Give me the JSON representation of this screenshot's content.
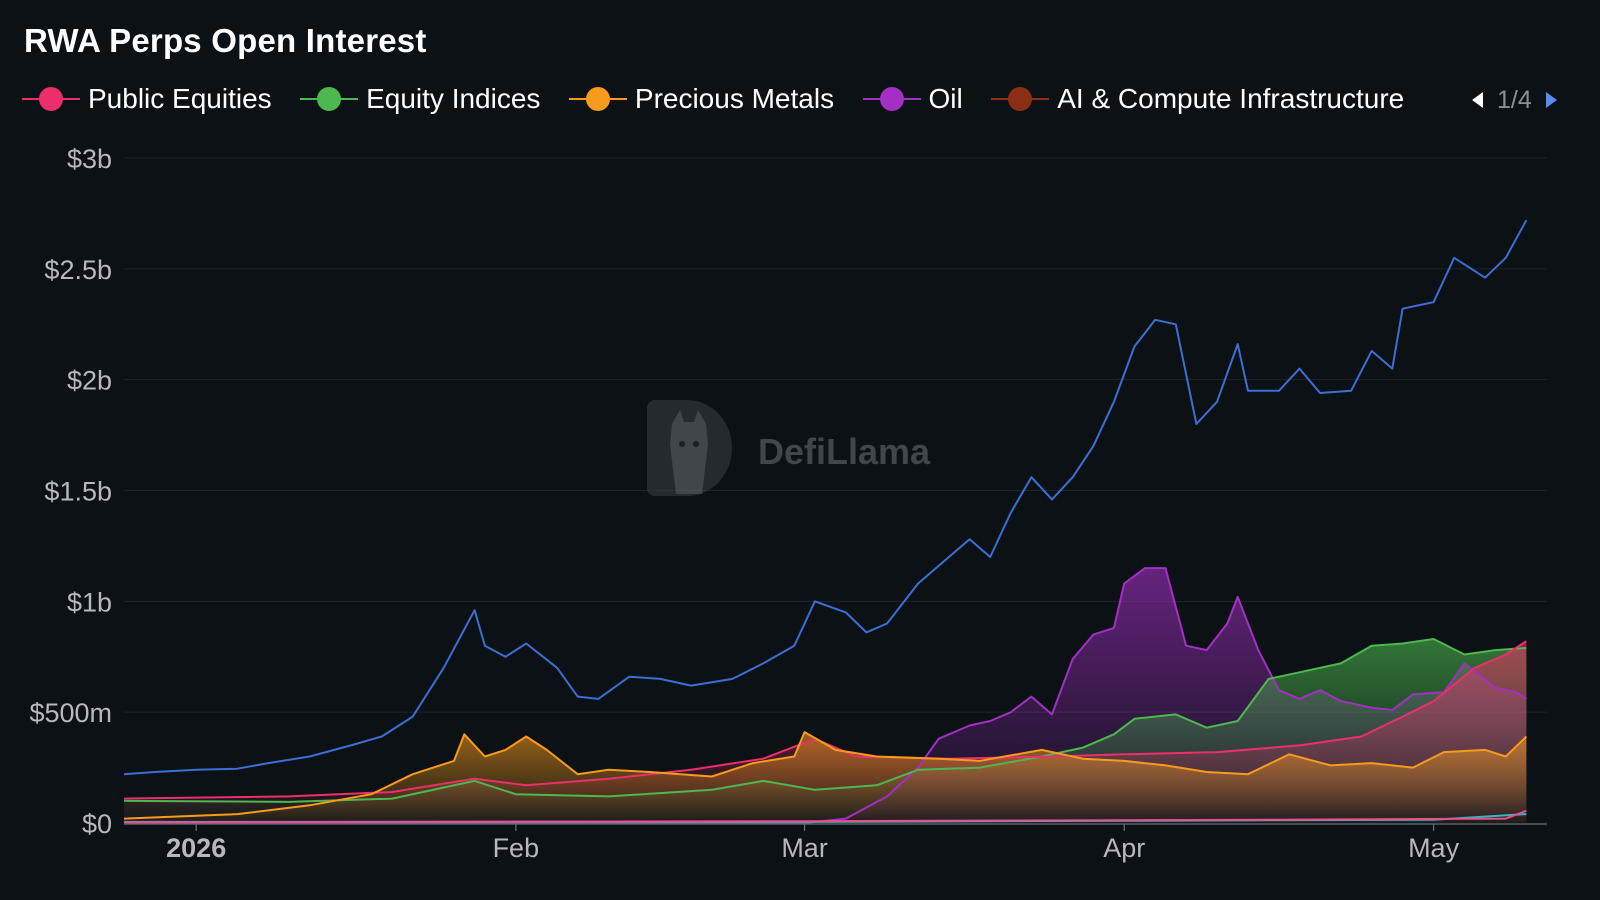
{
  "title": "RWA Perps Open Interest",
  "legend": {
    "items": [
      {
        "label": "Public Equities",
        "color": "#ec2f6b"
      },
      {
        "label": "Equity Indices",
        "color": "#4cb84d"
      },
      {
        "label": "Precious Metals",
        "color": "#f89a1c"
      },
      {
        "label": "Oil",
        "color": "#a32fc4"
      },
      {
        "label": "AI & Compute Infrastructure",
        "color": "#8a2f14"
      }
    ],
    "page": "1/4"
  },
  "watermark": "DefiLlama",
  "chart_data": {
    "type": "line",
    "ylim": [
      0,
      3000000000
    ],
    "y_ticks": [
      {
        "value": 0,
        "label": "$0"
      },
      {
        "value": 500000000,
        "label": "$500m"
      },
      {
        "value": 1000000000,
        "label": "$1b"
      },
      {
        "value": 1500000000,
        "label": "$1.5b"
      },
      {
        "value": 2000000000,
        "label": "$2b"
      },
      {
        "value": 2500000000,
        "label": "$2.5b"
      },
      {
        "value": 3000000000,
        "label": "$3b"
      }
    ],
    "xlim": [
      "2025-12-25",
      "2026-05-12"
    ],
    "x_ticks": [
      {
        "date": "2026-01-01",
        "label": "2026",
        "bold": true
      },
      {
        "date": "2026-02-01",
        "label": "Feb",
        "bold": false
      },
      {
        "date": "2026-03-01",
        "label": "Mar",
        "bold": false
      },
      {
        "date": "2026-04-01",
        "label": "Apr",
        "bold": false
      },
      {
        "date": "2026-05-01",
        "label": "May",
        "bold": false
      }
    ],
    "grid": "horizontal",
    "series": [
      {
        "color": "#3b6fd6",
        "fill": false,
        "points": [
          [
            "2025-12-25",
            220000000
          ],
          [
            "2025-12-28",
            230000000
          ],
          [
            "2026-01-01",
            240000000
          ],
          [
            "2026-01-05",
            245000000
          ],
          [
            "2026-01-08",
            270000000
          ],
          [
            "2026-01-12",
            300000000
          ],
          [
            "2026-01-16",
            350000000
          ],
          [
            "2026-01-19",
            390000000
          ],
          [
            "2026-01-22",
            480000000
          ],
          [
            "2026-01-25",
            700000000
          ],
          [
            "2026-01-28",
            960000000
          ],
          [
            "2026-01-29",
            800000000
          ],
          [
            "2026-01-31",
            750000000
          ],
          [
            "2026-02-02",
            810000000
          ],
          [
            "2026-02-05",
            700000000
          ],
          [
            "2026-02-07",
            570000000
          ],
          [
            "2026-02-09",
            560000000
          ],
          [
            "2026-02-12",
            660000000
          ],
          [
            "2026-02-15",
            650000000
          ],
          [
            "2026-02-18",
            620000000
          ],
          [
            "2026-02-22",
            650000000
          ],
          [
            "2026-02-25",
            720000000
          ],
          [
            "2026-02-28",
            800000000
          ],
          [
            "2026-03-02",
            1000000000
          ],
          [
            "2026-03-05",
            950000000
          ],
          [
            "2026-03-07",
            860000000
          ],
          [
            "2026-03-09",
            900000000
          ],
          [
            "2026-03-12",
            1080000000
          ],
          [
            "2026-03-15",
            1200000000
          ],
          [
            "2026-03-17",
            1280000000
          ],
          [
            "2026-03-19",
            1200000000
          ],
          [
            "2026-03-21",
            1400000000
          ],
          [
            "2026-03-23",
            1560000000
          ],
          [
            "2026-03-25",
            1460000000
          ],
          [
            "2026-03-27",
            1560000000
          ],
          [
            "2026-03-29",
            1700000000
          ],
          [
            "2026-03-31",
            1900000000
          ],
          [
            "2026-04-02",
            2150000000
          ],
          [
            "2026-04-04",
            2270000000
          ],
          [
            "2026-04-06",
            2250000000
          ],
          [
            "2026-04-08",
            1800000000
          ],
          [
            "2026-04-10",
            1900000000
          ],
          [
            "2026-04-12",
            2160000000
          ],
          [
            "2026-04-13",
            1950000000
          ],
          [
            "2026-04-16",
            1950000000
          ],
          [
            "2026-04-18",
            2050000000
          ],
          [
            "2026-04-20",
            1940000000
          ],
          [
            "2026-04-23",
            1950000000
          ],
          [
            "2026-04-25",
            2130000000
          ],
          [
            "2026-04-27",
            2050000000
          ],
          [
            "2026-04-28",
            2320000000
          ],
          [
            "2026-05-01",
            2350000000
          ],
          [
            "2026-05-03",
            2550000000
          ],
          [
            "2026-05-06",
            2460000000
          ],
          [
            "2026-05-08",
            2550000000
          ],
          [
            "2026-05-10",
            2720000000
          ]
        ]
      },
      {
        "color": "#a32fc4",
        "fill": true,
        "points": [
          [
            "2025-12-25",
            0
          ],
          [
            "2026-03-01",
            0
          ],
          [
            "2026-03-05",
            20000000
          ],
          [
            "2026-03-09",
            120000000
          ],
          [
            "2026-03-12",
            250000000
          ],
          [
            "2026-03-14",
            380000000
          ],
          [
            "2026-03-17",
            440000000
          ],
          [
            "2026-03-19",
            460000000
          ],
          [
            "2026-03-21",
            500000000
          ],
          [
            "2026-03-23",
            570000000
          ],
          [
            "2026-03-25",
            490000000
          ],
          [
            "2026-03-27",
            740000000
          ],
          [
            "2026-03-29",
            850000000
          ],
          [
            "2026-03-31",
            880000000
          ],
          [
            "2026-04-01",
            1080000000
          ],
          [
            "2026-04-03",
            1150000000
          ],
          [
            "2026-04-05",
            1150000000
          ],
          [
            "2026-04-07",
            800000000
          ],
          [
            "2026-04-09",
            780000000
          ],
          [
            "2026-04-11",
            900000000
          ],
          [
            "2026-04-12",
            1020000000
          ],
          [
            "2026-04-14",
            780000000
          ],
          [
            "2026-04-16",
            600000000
          ],
          [
            "2026-04-18",
            560000000
          ],
          [
            "2026-04-20",
            600000000
          ],
          [
            "2026-04-22",
            550000000
          ],
          [
            "2026-04-25",
            520000000
          ],
          [
            "2026-04-27",
            510000000
          ],
          [
            "2026-04-29",
            580000000
          ],
          [
            "2026-05-02",
            590000000
          ],
          [
            "2026-05-04",
            720000000
          ],
          [
            "2026-05-07",
            610000000
          ],
          [
            "2026-05-09",
            590000000
          ],
          [
            "2026-05-10",
            560000000
          ]
        ]
      },
      {
        "color": "#4cb84d",
        "fill": true,
        "points": [
          [
            "2025-12-25",
            100000000
          ],
          [
            "2026-01-10",
            95000000
          ],
          [
            "2026-01-20",
            110000000
          ],
          [
            "2026-01-28",
            190000000
          ],
          [
            "2026-02-01",
            130000000
          ],
          [
            "2026-02-10",
            120000000
          ],
          [
            "2026-02-20",
            150000000
          ],
          [
            "2026-02-25",
            190000000
          ],
          [
            "2026-03-02",
            150000000
          ],
          [
            "2026-03-08",
            170000000
          ],
          [
            "2026-03-12",
            240000000
          ],
          [
            "2026-03-18",
            250000000
          ],
          [
            "2026-03-24",
            300000000
          ],
          [
            "2026-03-28",
            340000000
          ],
          [
            "2026-03-31",
            400000000
          ],
          [
            "2026-04-02",
            470000000
          ],
          [
            "2026-04-06",
            490000000
          ],
          [
            "2026-04-09",
            430000000
          ],
          [
            "2026-04-12",
            460000000
          ],
          [
            "2026-04-15",
            650000000
          ],
          [
            "2026-04-18",
            680000000
          ],
          [
            "2026-04-22",
            720000000
          ],
          [
            "2026-04-25",
            800000000
          ],
          [
            "2026-04-28",
            810000000
          ],
          [
            "2026-05-01",
            830000000
          ],
          [
            "2026-05-04",
            760000000
          ],
          [
            "2026-05-07",
            780000000
          ],
          [
            "2026-05-10",
            790000000
          ]
        ]
      },
      {
        "color": "#ec2f6b",
        "fill": true,
        "points": [
          [
            "2025-12-25",
            110000000
          ],
          [
            "2026-01-10",
            120000000
          ],
          [
            "2026-01-20",
            140000000
          ],
          [
            "2026-01-28",
            200000000
          ],
          [
            "2026-02-02",
            170000000
          ],
          [
            "2026-02-10",
            200000000
          ],
          [
            "2026-02-18",
            240000000
          ],
          [
            "2026-02-25",
            290000000
          ],
          [
            "2026-03-02",
            380000000
          ],
          [
            "2026-03-06",
            300000000
          ],
          [
            "2026-03-15",
            290000000
          ],
          [
            "2026-03-25",
            300000000
          ],
          [
            "2026-04-01",
            310000000
          ],
          [
            "2026-04-10",
            320000000
          ],
          [
            "2026-04-18",
            350000000
          ],
          [
            "2026-04-24",
            390000000
          ],
          [
            "2026-04-28",
            480000000
          ],
          [
            "2026-05-01",
            550000000
          ],
          [
            "2026-05-05",
            700000000
          ],
          [
            "2026-05-08",
            760000000
          ],
          [
            "2026-05-10",
            820000000
          ]
        ]
      },
      {
        "color": "#f89a1c",
        "fill": true,
        "points": [
          [
            "2025-12-25",
            20000000
          ],
          [
            "2026-01-05",
            40000000
          ],
          [
            "2026-01-12",
            80000000
          ],
          [
            "2026-01-18",
            130000000
          ],
          [
            "2026-01-22",
            220000000
          ],
          [
            "2026-01-26",
            280000000
          ],
          [
            "2026-01-27",
            400000000
          ],
          [
            "2026-01-29",
            300000000
          ],
          [
            "2026-01-31",
            330000000
          ],
          [
            "2026-02-02",
            390000000
          ],
          [
            "2026-02-04",
            330000000
          ],
          [
            "2026-02-07",
            220000000
          ],
          [
            "2026-02-10",
            240000000
          ],
          [
            "2026-02-14",
            230000000
          ],
          [
            "2026-02-20",
            210000000
          ],
          [
            "2026-02-24",
            270000000
          ],
          [
            "2026-02-28",
            300000000
          ],
          [
            "2026-03-01",
            410000000
          ],
          [
            "2026-03-04",
            330000000
          ],
          [
            "2026-03-08",
            300000000
          ],
          [
            "2026-03-14",
            290000000
          ],
          [
            "2026-03-18",
            280000000
          ],
          [
            "2026-03-24",
            330000000
          ],
          [
            "2026-03-28",
            290000000
          ],
          [
            "2026-04-01",
            280000000
          ],
          [
            "2026-04-05",
            260000000
          ],
          [
            "2026-04-09",
            230000000
          ],
          [
            "2026-04-13",
            220000000
          ],
          [
            "2026-04-17",
            310000000
          ],
          [
            "2026-04-21",
            260000000
          ],
          [
            "2026-04-25",
            270000000
          ],
          [
            "2026-04-29",
            250000000
          ],
          [
            "2026-05-02",
            320000000
          ],
          [
            "2026-05-06",
            330000000
          ],
          [
            "2026-05-08",
            300000000
          ],
          [
            "2026-05-10",
            390000000
          ]
        ]
      },
      {
        "color": "#2fb8c9",
        "fill": false,
        "points": [
          [
            "2025-12-25",
            5000000
          ],
          [
            "2026-03-01",
            5000000
          ],
          [
            "2026-04-01",
            10000000
          ],
          [
            "2026-05-01",
            15000000
          ],
          [
            "2026-05-10",
            40000000
          ]
        ]
      },
      {
        "color": "#e8508a",
        "fill": false,
        "points": [
          [
            "2025-12-25",
            3000000
          ],
          [
            "2026-03-01",
            8000000
          ],
          [
            "2026-04-15",
            15000000
          ],
          [
            "2026-05-08",
            20000000
          ],
          [
            "2026-05-10",
            55000000
          ]
        ]
      }
    ]
  }
}
